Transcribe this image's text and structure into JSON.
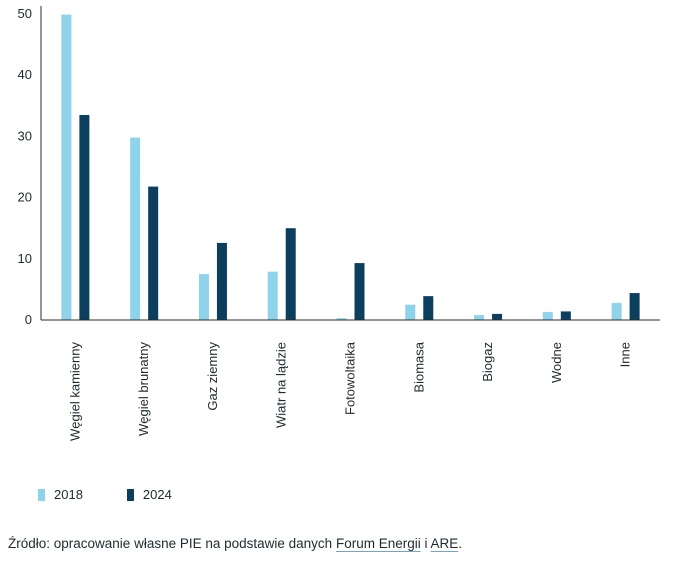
{
  "chart_data": {
    "type": "bar",
    "title": "",
    "xlabel": "",
    "ylabel": "",
    "ylim": [
      0,
      50
    ],
    "yticks": [
      0,
      10,
      20,
      30,
      40,
      50
    ],
    "grid": false,
    "categories": [
      "Węgiel kamienny",
      "Węgiel brunatny",
      "Gaz ziemny",
      "Wiatr na lądzie",
      "Fotowoltaika",
      "Biomasa",
      "Biogaz",
      "Wodne",
      "Inne"
    ],
    "series": [
      {
        "name": "2018",
        "color": "#8fd3ea",
        "values": [
          49.9,
          29.8,
          7.5,
          7.9,
          0.3,
          2.5,
          0.8,
          1.3,
          2.8
        ]
      },
      {
        "name": "2024",
        "color": "#0c3f5e",
        "values": [
          33.5,
          21.8,
          12.6,
          15.0,
          9.3,
          3.9,
          1.0,
          1.4,
          4.4
        ]
      }
    ],
    "legend_position": "bottom-left"
  },
  "legend": {
    "items": [
      {
        "label": "2018",
        "color": "#8fd3ea"
      },
      {
        "label": "2024",
        "color": "#0c3f5e"
      }
    ]
  },
  "source": {
    "prefix": "Źródło: opracowanie własne PIE na podstawie danych ",
    "link1": "Forum Energii",
    "middle": " i ",
    "link2": "ARE",
    "suffix": "."
  }
}
